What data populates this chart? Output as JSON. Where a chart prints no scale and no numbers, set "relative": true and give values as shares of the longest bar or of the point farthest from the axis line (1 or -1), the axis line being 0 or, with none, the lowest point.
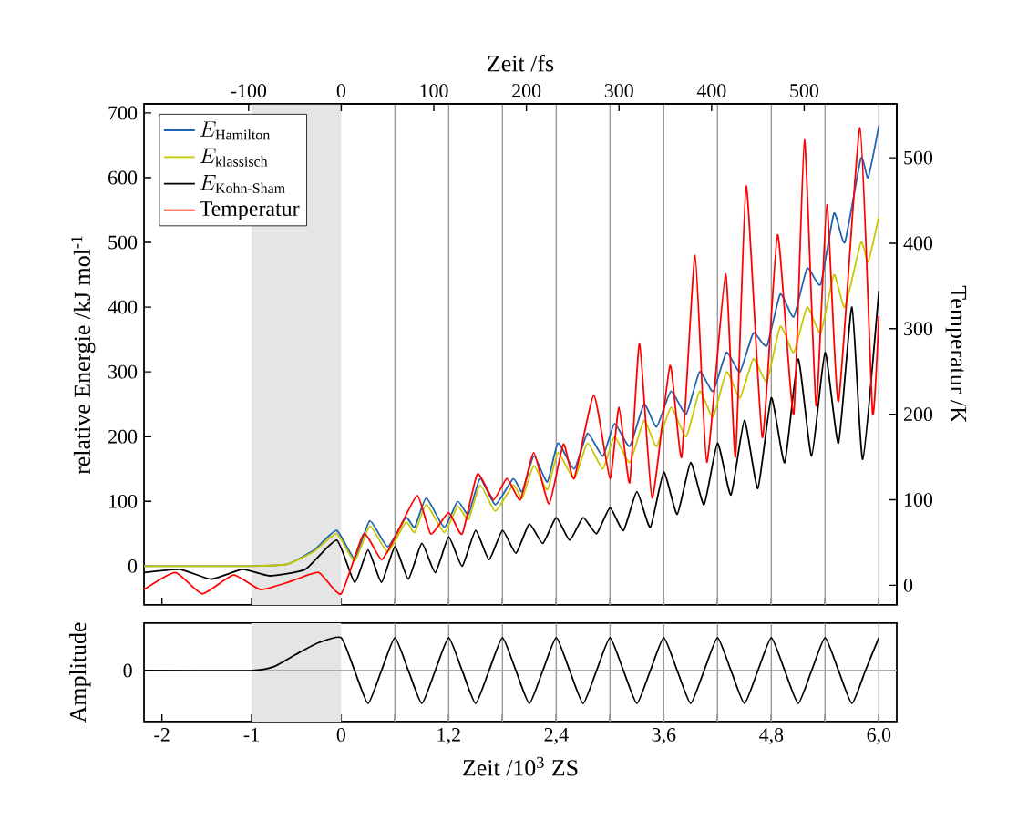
{
  "chart_data": [
    {
      "type": "line",
      "xlim": [
        -2.2,
        6.2
      ],
      "xticks": [
        {
          "value": -2,
          "label": null
        },
        {
          "value": -1,
          "label": null
        },
        {
          "value": 0,
          "label": null
        },
        {
          "value": 0.6,
          "label": null
        },
        {
          "value": 1.2,
          "label": null
        },
        {
          "value": 1.8,
          "label": null
        },
        {
          "value": 2.4,
          "label": null
        },
        {
          "value": 3.0,
          "label": null
        },
        {
          "value": 3.6,
          "label": null
        },
        {
          "value": 4.2,
          "label": null
        },
        {
          "value": 4.8,
          "label": null
        },
        {
          "value": 5.4,
          "label": null
        },
        {
          "value": 6.0,
          "label": null
        }
      ],
      "x2lim": [
        -213,
        600
      ],
      "x2ticks": [
        -100,
        0,
        100,
        200,
        300,
        400,
        500
      ],
      "x2label": "Zeit /fs",
      "ylim": [
        -60,
        714
      ],
      "yticks": [
        0,
        100,
        200,
        300,
        400,
        500,
        600,
        700
      ],
      "ylabel": "relative Energie /kJ mol$^{-1}$",
      "y2lim": [
        -23,
        563
      ],
      "y2ticks": [
        0,
        100,
        200,
        300,
        400,
        500
      ],
      "y2label": "Temperatur /K",
      "tick_labels": "y",
      "legend": "top left",
      "bands": [
        {
          "axis": "x",
          "from": -1,
          "to": 0,
          "color": "#e5e5e5"
        }
      ],
      "ref_lines": [
        {
          "axis": "x",
          "value": 0.6,
          "color": "#999999"
        },
        {
          "axis": "x",
          "value": 1.2,
          "color": "#999999"
        },
        {
          "axis": "x",
          "value": 1.8,
          "color": "#999999"
        },
        {
          "axis": "x",
          "value": 2.4,
          "color": "#999999"
        },
        {
          "axis": "x",
          "value": 3.0,
          "color": "#999999"
        },
        {
          "axis": "x",
          "value": 3.6,
          "color": "#999999"
        },
        {
          "axis": "x",
          "value": 4.2,
          "color": "#999999"
        },
        {
          "axis": "x",
          "value": 4.8,
          "color": "#999999"
        },
        {
          "axis": "x",
          "value": 5.4,
          "color": "#999999"
        },
        {
          "axis": "x",
          "value": 6.0,
          "color": "#999999"
        }
      ],
      "series": [
        {
          "name": "E_{\\mathrm{Hamilton}}",
          "color": "#1f63b0",
          "x": [
            -2.2,
            -1.0,
            -0.6,
            -0.3,
            -0.05,
            0.15,
            0.32,
            0.52,
            0.72,
            0.82,
            0.95,
            1.15,
            1.3,
            1.42,
            1.55,
            1.72,
            1.92,
            2.02,
            2.15,
            2.3,
            2.42,
            2.6,
            2.75,
            2.92,
            3.05,
            3.22,
            3.38,
            3.52,
            3.68,
            3.85,
            4.0,
            4.15,
            4.3,
            4.45,
            4.6,
            4.75,
            4.9,
            5.05,
            5.2,
            5.35,
            5.5,
            5.62,
            5.8,
            5.88,
            6.0
          ],
          "values": [
            0,
            0,
            3,
            25,
            55,
            12,
            70,
            30,
            75,
            60,
            105,
            60,
            100,
            80,
            135,
            95,
            135,
            115,
            170,
            130,
            190,
            150,
            205,
            170,
            220,
            185,
            250,
            215,
            270,
            235,
            300,
            270,
            330,
            300,
            360,
            340,
            420,
            385,
            460,
            435,
            545,
            500,
            630,
            600,
            680
          ]
        },
        {
          "name": "E_{\\mathrm{klassisch}}",
          "color": "#c8c800",
          "x": [
            -2.2,
            -1.0,
            -0.6,
            -0.3,
            -0.05,
            0.15,
            0.32,
            0.52,
            0.72,
            0.82,
            0.95,
            1.15,
            1.3,
            1.42,
            1.55,
            1.72,
            1.92,
            2.02,
            2.15,
            2.3,
            2.42,
            2.6,
            2.75,
            2.92,
            3.05,
            3.22,
            3.38,
            3.52,
            3.68,
            3.85,
            4.0,
            4.15,
            4.3,
            4.45,
            4.6,
            4.75,
            4.9,
            5.05,
            5.2,
            5.35,
            5.5,
            5.62,
            5.8,
            5.88,
            6.0
          ],
          "values": [
            0,
            0,
            3,
            23,
            50,
            8,
            62,
            22,
            68,
            52,
            95,
            52,
            92,
            72,
            125,
            85,
            125,
            105,
            155,
            118,
            175,
            135,
            190,
            150,
            200,
            160,
            225,
            185,
            245,
            200,
            270,
            230,
            300,
            260,
            320,
            285,
            370,
            330,
            400,
            360,
            450,
            400,
            500,
            470,
            540
          ]
        },
        {
          "name": "E_{\\mathrm{Kohn\\text{-}Sham}}",
          "color": "#000000",
          "x": [
            -2.2,
            -1.8,
            -1.45,
            -1.1,
            -0.8,
            -0.4,
            -0.05,
            0.15,
            0.3,
            0.45,
            0.6,
            0.75,
            0.9,
            1.05,
            1.2,
            1.35,
            1.5,
            1.65,
            1.8,
            1.95,
            2.1,
            2.25,
            2.4,
            2.55,
            2.7,
            2.85,
            3.0,
            3.15,
            3.3,
            3.45,
            3.6,
            3.75,
            3.9,
            4.05,
            4.2,
            4.35,
            4.5,
            4.65,
            4.8,
            4.95,
            5.1,
            5.25,
            5.4,
            5.55,
            5.7,
            5.82,
            6.0
          ],
          "values": [
            -10,
            -5,
            -20,
            -5,
            -15,
            -5,
            40,
            -25,
            25,
            -25,
            30,
            -20,
            35,
            -10,
            45,
            0,
            55,
            10,
            55,
            20,
            65,
            35,
            75,
            40,
            75,
            50,
            90,
            55,
            115,
            60,
            145,
            80,
            160,
            95,
            190,
            110,
            225,
            120,
            260,
            160,
            320,
            170,
            330,
            190,
            400,
            165,
            425
          ]
        },
        {
          "name": "Temperatur",
          "color": "#ff0000",
          "axis": "y2",
          "x": [
            -2.2,
            -1.85,
            -1.55,
            -1.2,
            -0.9,
            -0.55,
            -0.25,
            0.0,
            0.25,
            0.45,
            0.62,
            0.85,
            1.0,
            1.2,
            1.35,
            1.52,
            1.7,
            1.85,
            2.0,
            2.15,
            2.32,
            2.48,
            2.6,
            2.82,
            3.0,
            3.1,
            3.22,
            3.33,
            3.47,
            3.67,
            3.8,
            3.95,
            4.08,
            4.29,
            4.4,
            4.52,
            4.7,
            4.87,
            5.05,
            5.17,
            5.3,
            5.42,
            5.55,
            5.79,
            5.93,
            6.0
          ],
          "values": [
            -5,
            15,
            -10,
            12,
            -5,
            5,
            15,
            -10,
            60,
            30,
            60,
            105,
            60,
            85,
            60,
            130,
            100,
            125,
            100,
            155,
            95,
            165,
            125,
            222,
            125,
            208,
            120,
            283,
            102,
            257,
            150,
            386,
            144,
            364,
            150,
            467,
            173,
            410,
            200,
            521,
            210,
            445,
            215,
            535,
            201,
            315
          ]
        }
      ]
    },
    {
      "type": "line",
      "xlim": [
        -2.2,
        6.2
      ],
      "relative": true,
      "xticks": [
        -2,
        -1,
        0,
        {
          "value": 0.6,
          "label": null
        },
        {
          "value": 1.2,
          "label": "1,2"
        },
        {
          "value": 1.8,
          "label": null
        },
        {
          "value": 2.4,
          "label": "2,4"
        },
        {
          "value": 3.0,
          "label": null
        },
        {
          "value": 3.6,
          "label": "3,6"
        },
        {
          "value": 4.2,
          "label": null
        },
        {
          "value": 4.8,
          "label": "4,8"
        },
        {
          "value": 5.4,
          "label": null
        },
        {
          "value": 6.0,
          "label": "6,0"
        }
      ],
      "xlabel": "Zeit /10$^{3}$ ZS",
      "ylabel": "Amplitude",
      "bands": [
        {
          "axis": "x",
          "from": -1,
          "to": 0,
          "color": "#e5e5e5"
        }
      ],
      "ref_lines": [
        {
          "axis": "y",
          "value": 0,
          "label": "0",
          "color": "#aaaaaa"
        },
        {
          "axis": "x",
          "value": 0.6,
          "color": "#999999"
        },
        {
          "axis": "x",
          "value": 1.2,
          "color": "#999999"
        },
        {
          "axis": "x",
          "value": 1.8,
          "color": "#999999"
        },
        {
          "axis": "x",
          "value": 2.4,
          "color": "#999999"
        },
        {
          "axis": "x",
          "value": 3.0,
          "color": "#999999"
        },
        {
          "axis": "x",
          "value": 3.6,
          "color": "#999999"
        },
        {
          "axis": "x",
          "value": 4.2,
          "color": "#999999"
        },
        {
          "axis": "x",
          "value": 4.8,
          "color": "#999999"
        },
        {
          "axis": "x",
          "value": 5.4,
          "color": "#999999"
        },
        {
          "axis": "x",
          "value": 6.0,
          "color": "#999999"
        }
      ],
      "series": [
        {
          "color": "#000000",
          "x": [
            -2.2,
            -1.0,
            -0.75,
            -0.5,
            -0.25,
            0.0,
            0.15,
            0.3,
            0.45,
            0.6,
            0.75,
            0.9,
            1.05,
            1.2,
            1.35,
            1.5,
            1.65,
            1.8,
            1.95,
            2.1,
            2.25,
            2.4,
            2.55,
            2.7,
            2.85,
            3.0,
            3.15,
            3.3,
            3.45,
            3.6,
            3.75,
            3.9,
            4.05,
            4.2,
            4.35,
            4.5,
            4.65,
            4.8,
            4.95,
            5.1,
            5.25,
            5.4,
            5.55,
            5.7,
            5.85,
            6.0
          ],
          "values": [
            0,
            0,
            0.12,
            0.5,
            0.85,
            1,
            0,
            -1,
            0,
            1,
            0,
            -1,
            0,
            1,
            0,
            -1,
            0,
            1,
            0,
            -1,
            0,
            1,
            0,
            -1,
            0,
            1,
            0,
            -1,
            0,
            1,
            0,
            -1,
            0,
            1,
            0,
            -1,
            0,
            1,
            0,
            -1,
            0,
            1,
            0,
            -1,
            0,
            1
          ]
        }
      ]
    }
  ]
}
